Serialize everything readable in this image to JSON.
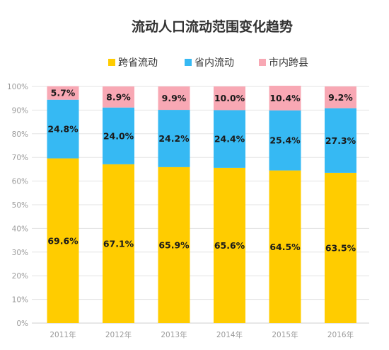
{
  "chart_data": {
    "type": "bar",
    "stacked": true,
    "percent_stacked": true,
    "title": "流动人口流动范围变化趋势",
    "categories": [
      "2011年",
      "2012年",
      "2013年",
      "2014年",
      "2015年",
      "2016年"
    ],
    "series": [
      {
        "name": "跨省流动",
        "color": "#ffcc00",
        "values": [
          69.6,
          67.1,
          65.9,
          65.6,
          64.5,
          63.5
        ],
        "labels": [
          "69.6%",
          "67.1%",
          "65.9%",
          "65.6%",
          "64.5%",
          "63.5%"
        ]
      },
      {
        "name": "省内流动",
        "color": "#36b9f3",
        "values": [
          24.8,
          24.0,
          24.2,
          24.4,
          25.4,
          27.3
        ],
        "labels": [
          "24.8%",
          "24.0%",
          "24.2%",
          "24.4%",
          "25.4%",
          "27.3%"
        ]
      },
      {
        "name": "市内跨县",
        "color": "#f8a8b4",
        "values": [
          5.7,
          8.9,
          9.9,
          10.0,
          10.4,
          9.2
        ],
        "labels": [
          "5.7%",
          "8.9%",
          "9.9%",
          "10.0%",
          "10.4%",
          "9.2%"
        ]
      }
    ],
    "y_ticks": [
      "0%",
      "10%",
      "20%",
      "30%",
      "40%",
      "50%",
      "60%",
      "70%",
      "80%",
      "90%",
      "100%"
    ],
    "ylim": [
      0,
      100
    ],
    "grid": true,
    "legend_position": "top-center"
  }
}
